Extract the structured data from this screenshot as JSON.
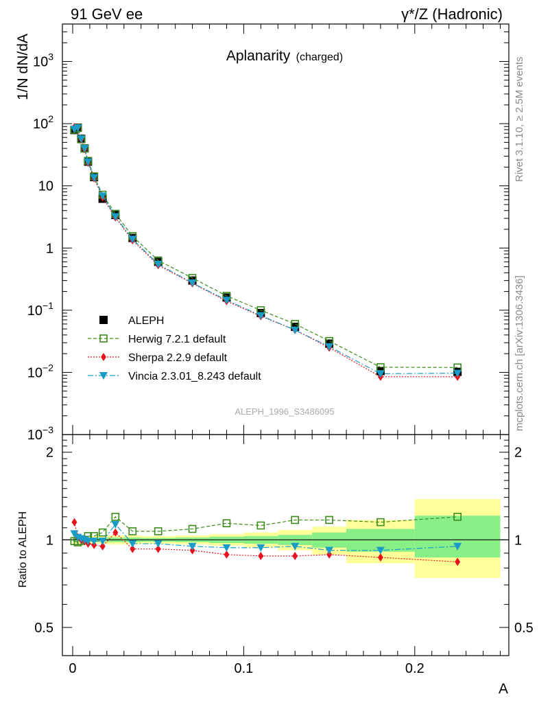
{
  "header": {
    "left": "91 GeV ee",
    "right": "γ*/Z (Hadronic)"
  },
  "side_texts": {
    "rivet": "Rivet 3.1.10, ≥ 2.5M events",
    "mcplots": "mcplots.cern.ch [arXiv:1306.3436]"
  },
  "analysis_id": "ALEPH_1996_S3486095",
  "colors": {
    "ALEPH": "#000000",
    "Herwig": "#3a8a1a",
    "Sherpa": "#e8121a",
    "Vincia": "#1a9bc8",
    "band_outer": "#ffff99",
    "band_inner": "#88ee88"
  },
  "chart_data": [
    {
      "type": "scatter",
      "title": "Aplanarity",
      "subtitle": "(charged)",
      "xlabel": "A",
      "ylabel": "1/N dN/dA",
      "yscale": "log",
      "xlim": [
        -0.006,
        0.255
      ],
      "ylim": [
        0.001,
        4000
      ],
      "y_ticks": [
        {
          "v": 0.001,
          "base": "10",
          "exp": "−3"
        },
        {
          "v": 0.01,
          "base": "10",
          "exp": "−2"
        },
        {
          "v": 0.1,
          "base": "10",
          "exp": "−1"
        },
        {
          "v": 1,
          "base": "1",
          "exp": ""
        },
        {
          "v": 10,
          "base": "10",
          "exp": ""
        },
        {
          "v": 100,
          "base": "10",
          "exp": "2"
        },
        {
          "v": 1000,
          "base": "10",
          "exp": "3"
        }
      ],
      "legend_placement": "bottom-left",
      "x": [
        0.001,
        0.003,
        0.005,
        0.007,
        0.009,
        0.0125,
        0.0175,
        0.025,
        0.035,
        0.05,
        0.07,
        0.09,
        0.11,
        0.13,
        0.15,
        0.18,
        0.225
      ],
      "series": [
        {
          "name": "ALEPH",
          "key": "ALEPH",
          "marker": "square-filled",
          "line": "none",
          "values": [
            79,
            86,
            57,
            40,
            24.5,
            13.8,
            6.2,
            3.4,
            1.45,
            0.6,
            0.3,
            0.16,
            0.09,
            0.054,
            0.029,
            0.0105,
            0.0102
          ]
        },
        {
          "name": "Herwig 7.2.1 default",
          "key": "Herwig",
          "marker": "square-open",
          "line": "dashed",
          "values": [
            80,
            85,
            56,
            40,
            25.2,
            14.2,
            7.2,
            3.55,
            1.55,
            0.63,
            0.33,
            0.17,
            0.1,
            0.06,
            0.032,
            0.0121,
            0.012
          ]
        },
        {
          "name": "Sherpa 2.2.9 default",
          "key": "Sherpa",
          "marker": "diamond",
          "line": "dotted",
          "values": [
            88,
            87,
            56,
            39,
            23.5,
            13.2,
            6.5,
            3.1,
            1.33,
            0.53,
            0.27,
            0.14,
            0.08,
            0.048,
            0.025,
            0.0085,
            0.0085
          ]
        },
        {
          "name": "Vincia 2.3.01_8.243 default",
          "key": "Vincia",
          "marker": "triangle-down",
          "line": "dashdot",
          "values": [
            81,
            86,
            57,
            40,
            24.3,
            13.6,
            6.9,
            3.2,
            1.39,
            0.55,
            0.275,
            0.145,
            0.082,
            0.048,
            0.026,
            0.0095,
            0.0097
          ]
        }
      ]
    },
    {
      "type": "scatter",
      "ylabel": "Ratio to ALEPH",
      "xlabel": "A",
      "xlim": [
        -0.006,
        0.255
      ],
      "ylim": [
        0.4,
        2.3
      ],
      "y_ticks": [
        {
          "v": 0.5,
          "label": "0.5"
        },
        {
          "v": 1,
          "label": "1"
        },
        {
          "v": 2,
          "label": "2"
        }
      ],
      "x_ticks": [
        {
          "v": 0,
          "label": "0"
        },
        {
          "v": 0.1,
          "label": "0.1"
        },
        {
          "v": 0.2,
          "label": "0.2"
        }
      ],
      "reference": 1,
      "bands": [
        {
          "x0": 0.0,
          "x1": 0.002,
          "outer": [
            0.97,
            1.03
          ],
          "inner": [
            0.985,
            1.015
          ]
        },
        {
          "x0": 0.002,
          "x1": 0.004,
          "outer": [
            0.97,
            1.03
          ],
          "inner": [
            0.985,
            1.015
          ]
        },
        {
          "x0": 0.004,
          "x1": 0.006,
          "outer": [
            0.97,
            1.03
          ],
          "inner": [
            0.985,
            1.015
          ]
        },
        {
          "x0": 0.006,
          "x1": 0.008,
          "outer": [
            0.97,
            1.03
          ],
          "inner": [
            0.985,
            1.015
          ]
        },
        {
          "x0": 0.008,
          "x1": 0.01,
          "outer": [
            0.97,
            1.03
          ],
          "inner": [
            0.985,
            1.015
          ]
        },
        {
          "x0": 0.01,
          "x1": 0.015,
          "outer": [
            0.97,
            1.03
          ],
          "inner": [
            0.985,
            1.015
          ]
        },
        {
          "x0": 0.015,
          "x1": 0.02,
          "outer": [
            0.97,
            1.03
          ],
          "inner": [
            0.985,
            1.015
          ]
        },
        {
          "x0": 0.02,
          "x1": 0.03,
          "outer": [
            0.965,
            1.035
          ],
          "inner": [
            0.982,
            1.018
          ]
        },
        {
          "x0": 0.03,
          "x1": 0.04,
          "outer": [
            0.965,
            1.035
          ],
          "inner": [
            0.982,
            1.018
          ]
        },
        {
          "x0": 0.04,
          "x1": 0.06,
          "outer": [
            0.97,
            1.03
          ],
          "inner": [
            0.985,
            1.015
          ]
        },
        {
          "x0": 0.06,
          "x1": 0.08,
          "outer": [
            0.965,
            1.035
          ],
          "inner": [
            0.982,
            1.018
          ]
        },
        {
          "x0": 0.08,
          "x1": 0.1,
          "outer": [
            0.955,
            1.045
          ],
          "inner": [
            0.975,
            1.025
          ]
        },
        {
          "x0": 0.1,
          "x1": 0.12,
          "outer": [
            0.94,
            1.06
          ],
          "inner": [
            0.97,
            1.03
          ]
        },
        {
          "x0": 0.12,
          "x1": 0.14,
          "outer": [
            0.92,
            1.08
          ],
          "inner": [
            0.96,
            1.04
          ]
        },
        {
          "x0": 0.14,
          "x1": 0.16,
          "outer": [
            0.89,
            1.11
          ],
          "inner": [
            0.94,
            1.06
          ]
        },
        {
          "x0": 0.16,
          "x1": 0.2,
          "outer": [
            0.83,
            1.17
          ],
          "inner": [
            0.91,
            1.09
          ]
        },
        {
          "x0": 0.2,
          "x1": 0.25,
          "outer": [
            0.74,
            1.38
          ],
          "inner": [
            0.87,
            1.21
          ]
        }
      ],
      "x": [
        0.001,
        0.003,
        0.005,
        0.007,
        0.009,
        0.0125,
        0.0175,
        0.025,
        0.035,
        0.05,
        0.07,
        0.09,
        0.11,
        0.13,
        0.15,
        0.18,
        0.225
      ],
      "series": [
        {
          "name": "Herwig 7.2.1 default",
          "key": "Herwig",
          "marker": "square-open",
          "line": "dashed",
          "values": [
            0.99,
            0.98,
            0.99,
            1.0,
            1.03,
            1.03,
            1.06,
            1.2,
            1.07,
            1.07,
            1.09,
            1.14,
            1.12,
            1.17,
            1.17,
            1.15,
            1.2
          ]
        },
        {
          "name": "Sherpa 2.2.9 default",
          "key": "Sherpa",
          "marker": "diamond",
          "line": "dotted",
          "values": [
            1.15,
            1.02,
            1.0,
            0.99,
            0.97,
            0.96,
            0.95,
            1.06,
            0.93,
            0.93,
            0.92,
            0.89,
            0.88,
            0.88,
            0.89,
            0.87,
            0.84
          ]
        },
        {
          "name": "Vincia 2.3.01_8.243 default",
          "key": "Vincia",
          "marker": "triangle-down",
          "line": "dashdot",
          "values": [
            1.05,
            1.02,
            1.01,
            1.0,
            0.99,
            0.99,
            0.99,
            1.13,
            0.97,
            0.97,
            0.95,
            0.94,
            0.94,
            0.95,
            0.92,
            0.92,
            0.95
          ]
        }
      ]
    }
  ]
}
